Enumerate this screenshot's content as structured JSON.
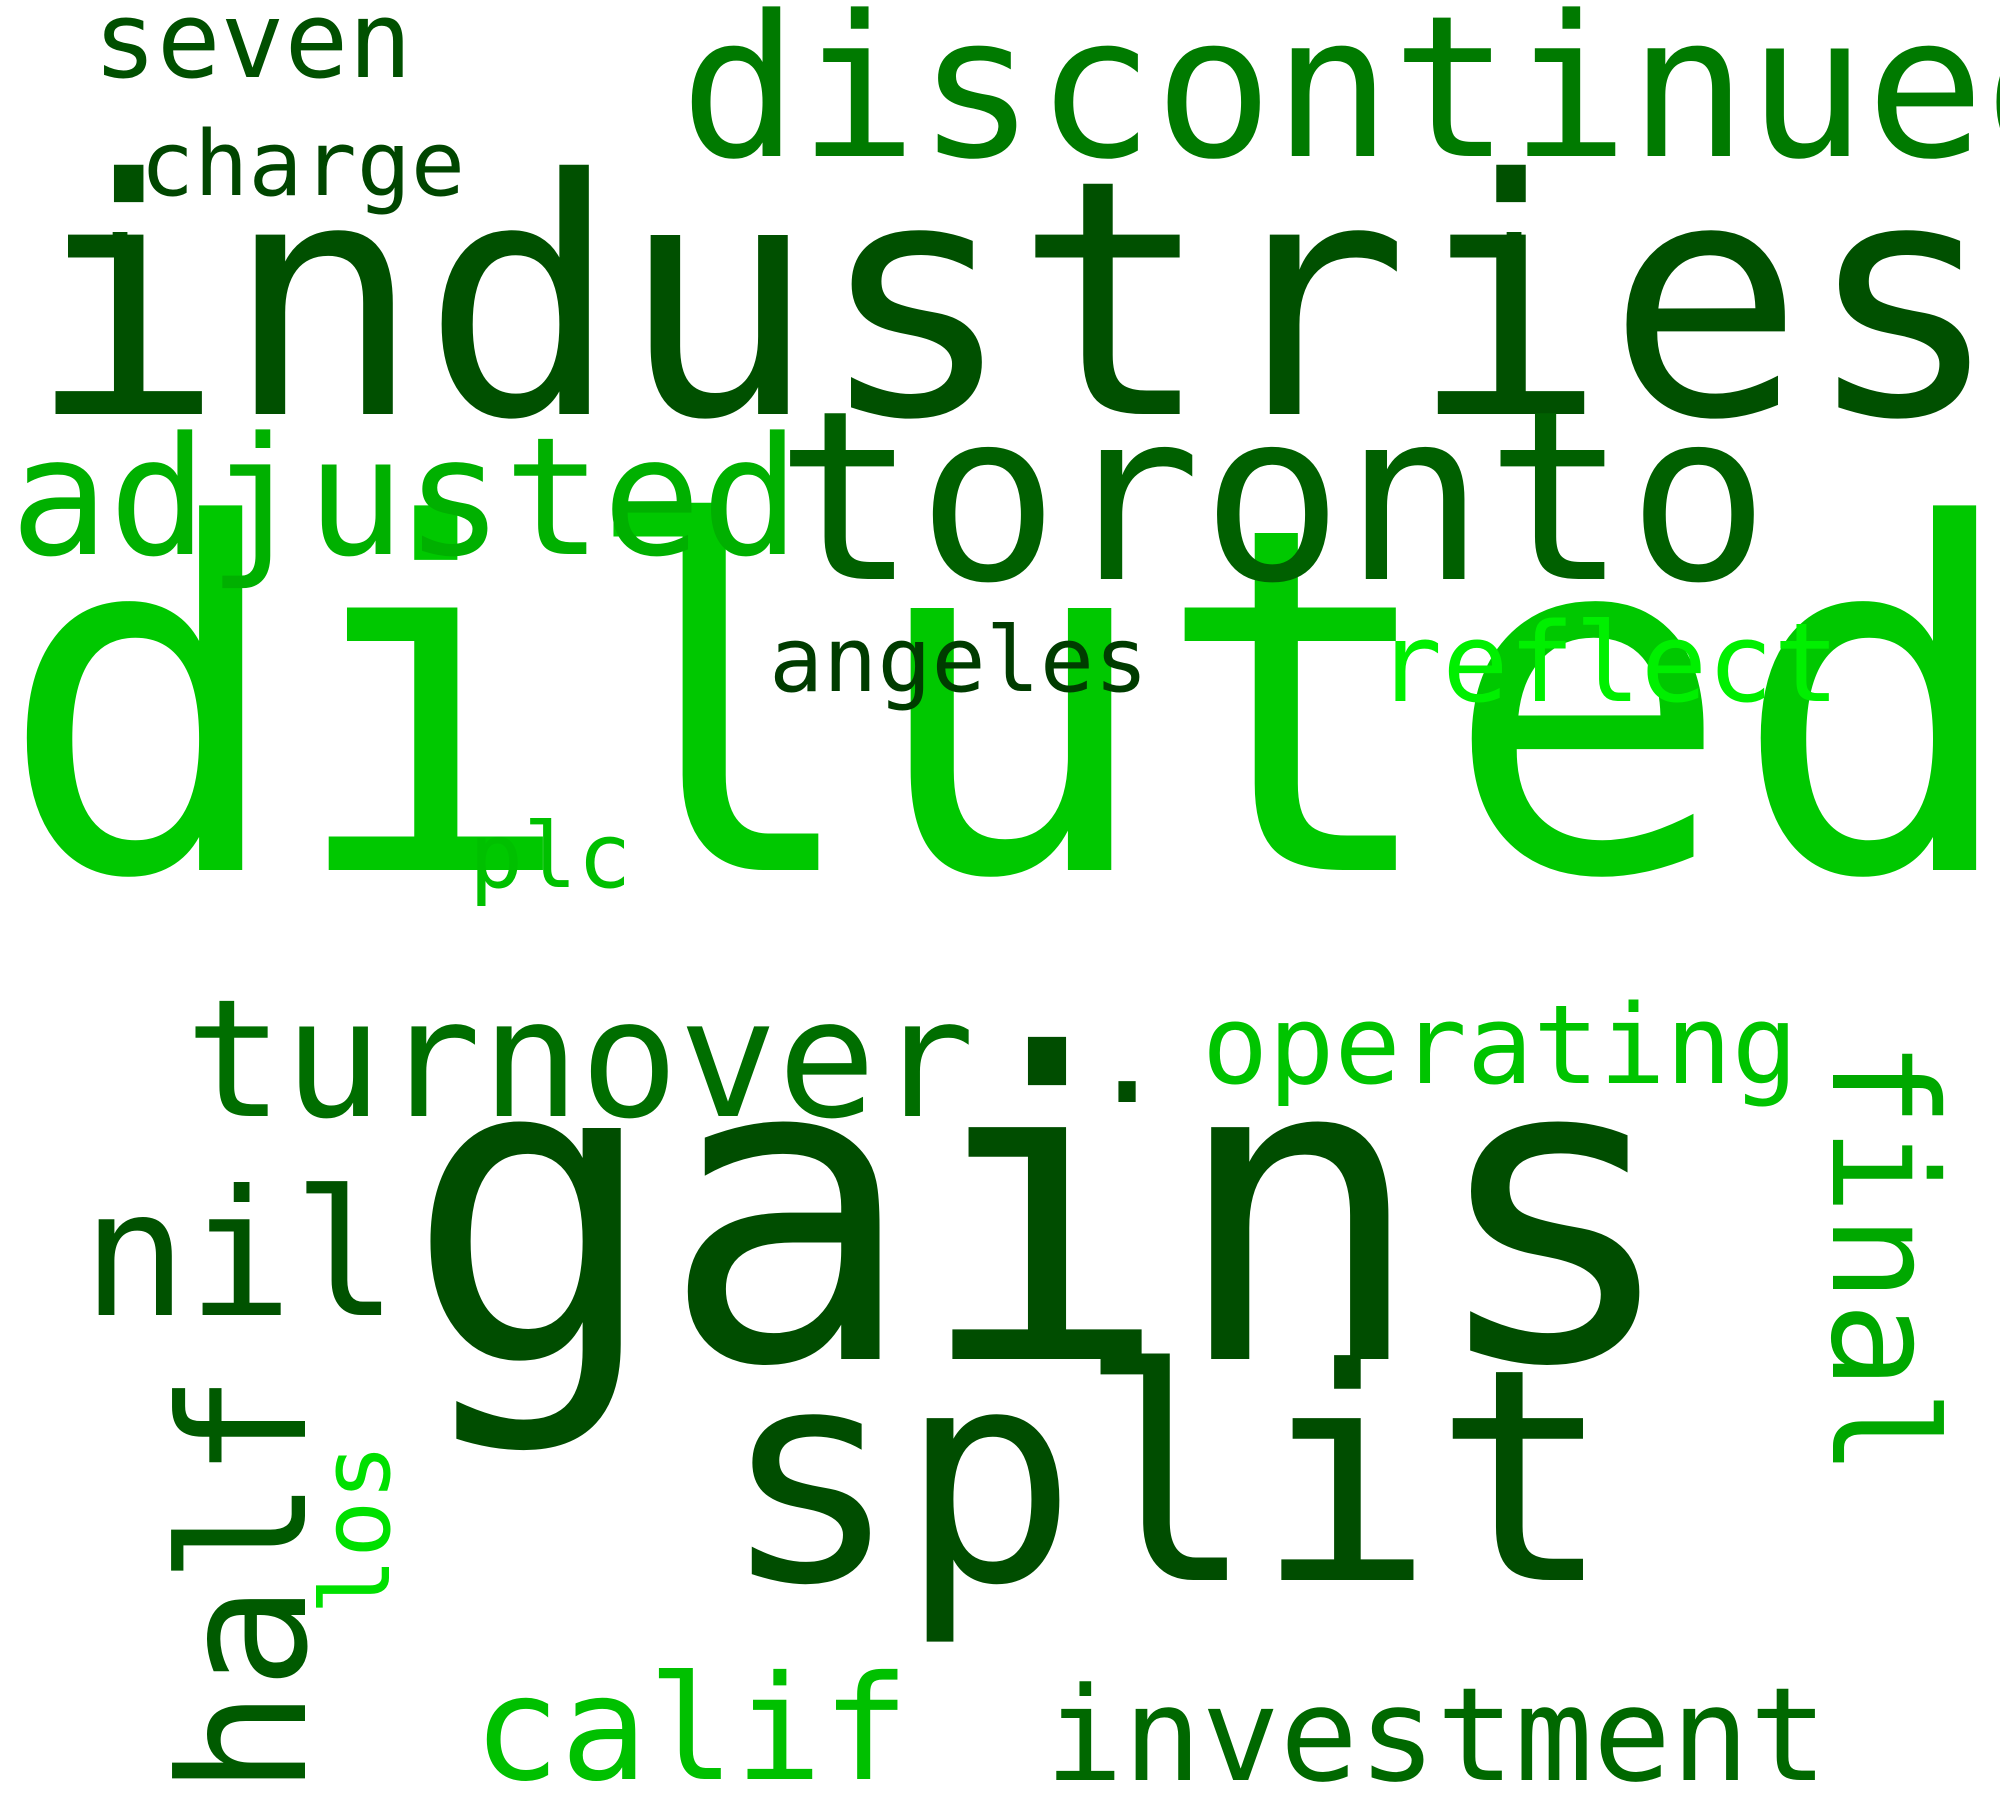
{
  "cloud": {
    "words": [
      {
        "text": "diluted",
        "color": "#00c800"
      },
      {
        "text": "gains",
        "color": "#004d00"
      },
      {
        "text": "industries",
        "color": "#005000"
      },
      {
        "text": "toronto",
        "color": "#006000"
      },
      {
        "text": "split",
        "color": "#004d00"
      },
      {
        "text": "discontinued",
        "color": "#007a00"
      },
      {
        "text": "adjusted",
        "color": "#00b000"
      },
      {
        "text": "turnover",
        "color": "#006e00"
      },
      {
        "text": "investment",
        "color": "#006800"
      },
      {
        "text": "half",
        "color": "#005a00"
      },
      {
        "text": "nil",
        "color": "#005200"
      },
      {
        "text": "final",
        "color": "#00a800"
      },
      {
        "text": "calif",
        "color": "#00c000"
      },
      {
        "text": "operating",
        "color": "#00c400"
      },
      {
        "text": "reflect",
        "color": "#00f000"
      },
      {
        "text": "seven",
        "color": "#005000"
      },
      {
        "text": "charge",
        "color": "#004600"
      },
      {
        "text": "angeles",
        "color": "#003c00"
      },
      {
        "text": "plc",
        "color": "#00c000"
      },
      {
        "text": "los",
        "color": "#00e000"
      },
      {
        "text": ".",
        "color": "#005000"
      },
      {
        "text": ".",
        "color": "#005000"
      },
      {
        "text": ".",
        "color": "#004d00"
      }
    ]
  }
}
